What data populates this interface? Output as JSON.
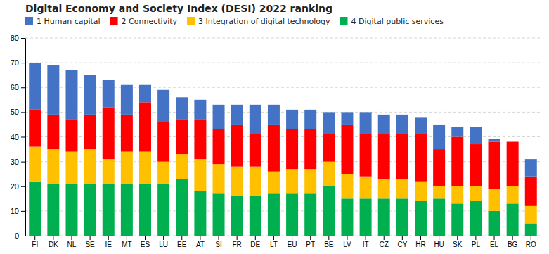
{
  "chart_data": {
    "type": "bar",
    "stacked": true,
    "title": "Digital Economy and Society Index (DESI) 2022 ranking",
    "categories": [
      "FI",
      "DK",
      "NL",
      "SE",
      "IE",
      "MT",
      "ES",
      "LU",
      "EE",
      "AT",
      "SI",
      "FR",
      "DE",
      "LT",
      "EU",
      "PT",
      "BE",
      "LV",
      "IT",
      "CZ",
      "CY",
      "HR",
      "HU",
      "SK",
      "PL",
      "EL",
      "BG",
      "RO"
    ],
    "series": [
      {
        "name": "4 Digital public services",
        "color": "#00B050",
        "values": [
          22,
          21,
          21,
          21,
          21,
          21,
          21,
          21,
          23,
          18,
          17,
          16,
          16,
          17,
          17,
          17,
          20,
          15,
          15,
          15,
          15,
          14,
          15,
          13,
          14,
          10,
          13,
          5
        ]
      },
      {
        "name": "3 Integration of digital technology",
        "color": "#FFC000",
        "values": [
          14,
          14,
          13,
          14,
          10,
          13,
          13,
          9,
          10,
          13,
          12,
          12,
          12,
          9,
          10,
          10,
          10,
          10,
          9,
          8,
          8,
          8,
          5,
          7,
          6,
          9,
          7,
          7
        ]
      },
      {
        "name": "2 Connectivity",
        "color": "#FF0000",
        "values": [
          15,
          14,
          13,
          14,
          21,
          15,
          20,
          16,
          14,
          16,
          14,
          17,
          13,
          19,
          16,
          16,
          11,
          20,
          17,
          18,
          18,
          19,
          15,
          20,
          17,
          19,
          18,
          12
        ]
      },
      {
        "name": "1 Human capital",
        "color": "#4472C4",
        "values": [
          19,
          20,
          20,
          16,
          11,
          12,
          7,
          13,
          9,
          8,
          10,
          8,
          12,
          8,
          8,
          8,
          9,
          5,
          9,
          8,
          8,
          7,
          10,
          4,
          7,
          1,
          0,
          7
        ]
      }
    ],
    "ylim": [
      0,
      80
    ],
    "yticks": [
      0,
      10,
      20,
      30,
      40,
      50,
      60,
      70,
      80
    ],
    "grid": true,
    "legend": "top-left"
  }
}
